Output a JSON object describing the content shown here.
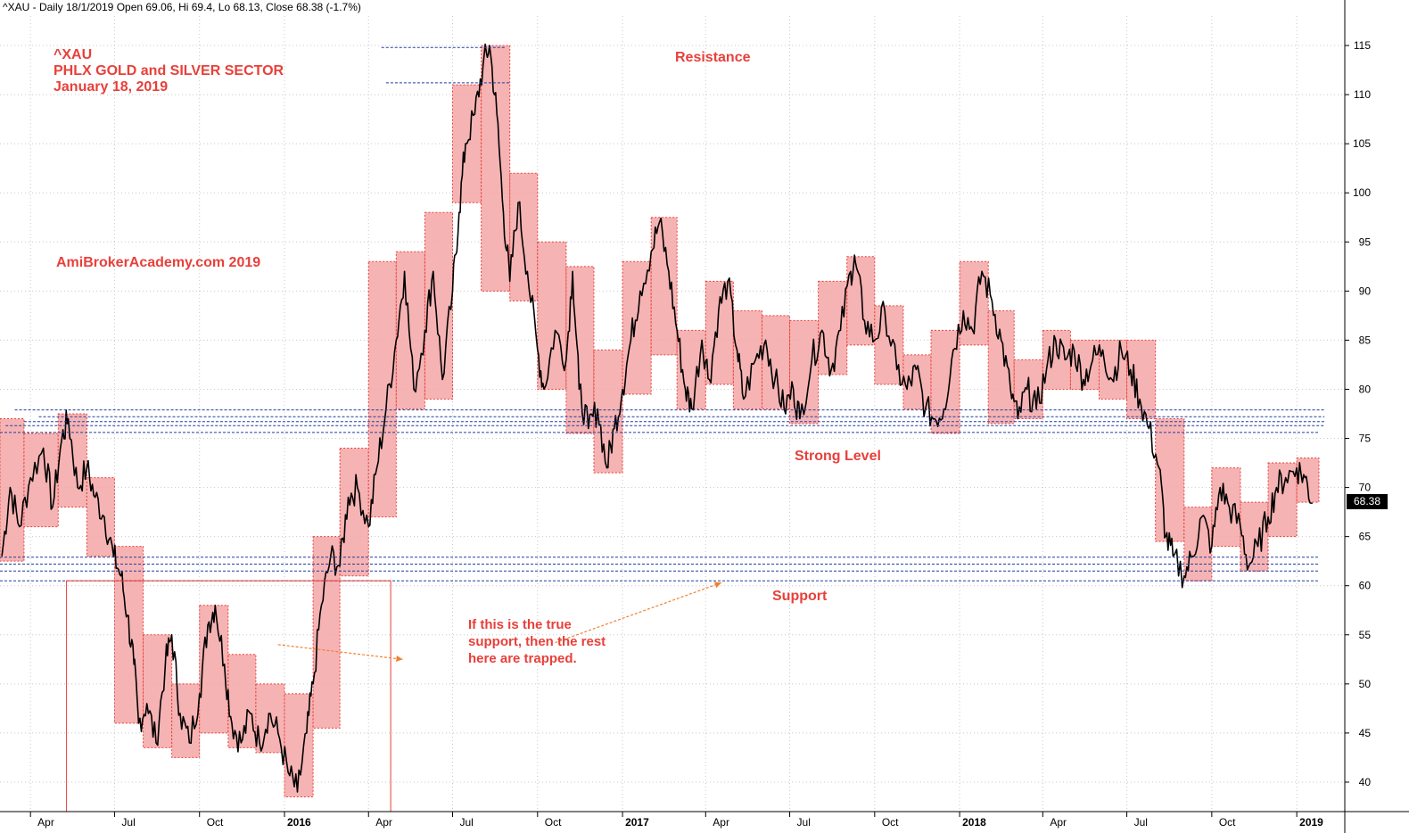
{
  "header": {
    "text": "^XAU - Daily 18/1/2019 Open 69.06, Hi 69.4, Lo 68.13, Close 68.38 (-1.7%)"
  },
  "annotations": {
    "symbol": "^XAU",
    "sector": "PHLX GOLD and SILVER SECTOR",
    "date": "January 18, 2019",
    "watermark": "AmiBrokerAcademy.com  2019",
    "resistance": "Resistance",
    "strong_level": "Strong Level",
    "support": "Support",
    "note": "If this is the true support, then the rest here are trapped."
  },
  "last_price": "68.38",
  "colors": {
    "box_fill": "#f4a6a6",
    "box_border": "#e8403a",
    "level_line": "#1f3fa0",
    "annotation": "#e8403a",
    "arrow": "#f08030",
    "grid": "#c8c8c8",
    "price_line": "#000000"
  },
  "chart_data": {
    "type": "line",
    "series": [
      {
        "points": [
          [
            "2015-03-01",
            63
          ],
          [
            "2015-03-10",
            70
          ],
          [
            "2015-03-20",
            66
          ],
          [
            "2015-04-01",
            71
          ],
          [
            "2015-04-15",
            74
          ],
          [
            "2015-04-25",
            68
          ],
          [
            "2015-05-05",
            75
          ],
          [
            "2015-05-12",
            77
          ],
          [
            "2015-05-22",
            70
          ],
          [
            "2015-06-01",
            72
          ],
          [
            "2015-06-10",
            69
          ],
          [
            "2015-06-20",
            67
          ],
          [
            "2015-06-30",
            63
          ],
          [
            "2015-07-08",
            61
          ],
          [
            "2015-07-15",
            57
          ],
          [
            "2015-07-22",
            52
          ],
          [
            "2015-07-27",
            46
          ],
          [
            "2015-08-05",
            48
          ],
          [
            "2015-08-15",
            44
          ],
          [
            "2015-08-25",
            52
          ],
          [
            "2015-09-01",
            55
          ],
          [
            "2015-09-10",
            47
          ],
          [
            "2015-09-20",
            44
          ],
          [
            "2015-10-01",
            49
          ],
          [
            "2015-10-10",
            56
          ],
          [
            "2015-10-18",
            58
          ],
          [
            "2015-10-28",
            52
          ],
          [
            "2015-11-05",
            46
          ],
          [
            "2015-11-15",
            44
          ],
          [
            "2015-11-25",
            47
          ],
          [
            "2015-12-05",
            44
          ],
          [
            "2015-12-15",
            47
          ],
          [
            "2015-12-25",
            45
          ],
          [
            "2016-01-05",
            41
          ],
          [
            "2016-01-15",
            39
          ],
          [
            "2016-01-25",
            45
          ],
          [
            "2016-02-01",
            50
          ],
          [
            "2016-02-10",
            58
          ],
          [
            "2016-02-20",
            63
          ],
          [
            "2016-03-01",
            62
          ],
          [
            "2016-03-10",
            69
          ],
          [
            "2016-03-20",
            70
          ],
          [
            "2016-04-01",
            66
          ],
          [
            "2016-04-10",
            72
          ],
          [
            "2016-04-20",
            78
          ],
          [
            "2016-05-01",
            85
          ],
          [
            "2016-05-10",
            92
          ],
          [
            "2016-05-20",
            80
          ],
          [
            "2016-06-01",
            86
          ],
          [
            "2016-06-10",
            92
          ],
          [
            "2016-06-20",
            81
          ],
          [
            "2016-07-01",
            90
          ],
          [
            "2016-07-08",
            98
          ],
          [
            "2016-07-15",
            105
          ],
          [
            "2016-07-25",
            108
          ],
          [
            "2016-08-03",
            113
          ],
          [
            "2016-08-10",
            115
          ],
          [
            "2016-08-18",
            108
          ],
          [
            "2016-08-25",
            98
          ],
          [
            "2016-09-01",
            91
          ],
          [
            "2016-09-10",
            99
          ],
          [
            "2016-09-20",
            92
          ],
          [
            "2016-10-01",
            84
          ],
          [
            "2016-10-08",
            80
          ],
          [
            "2016-10-20",
            86
          ],
          [
            "2016-11-01",
            83
          ],
          [
            "2016-11-08",
            92
          ],
          [
            "2016-11-15",
            80
          ],
          [
            "2016-11-25",
            76
          ],
          [
            "2016-12-05",
            78
          ],
          [
            "2016-12-15",
            72
          ],
          [
            "2016-12-23",
            76
          ],
          [
            "2017-01-01",
            80
          ],
          [
            "2017-01-10",
            85
          ],
          [
            "2017-01-20",
            90
          ],
          [
            "2017-02-01",
            94
          ],
          [
            "2017-02-10",
            97
          ],
          [
            "2017-02-20",
            92
          ],
          [
            "2017-03-01",
            86
          ],
          [
            "2017-03-10",
            80
          ],
          [
            "2017-03-17",
            78
          ],
          [
            "2017-03-28",
            85
          ],
          [
            "2017-04-05",
            81
          ],
          [
            "2017-04-15",
            88
          ],
          [
            "2017-04-25",
            91
          ],
          [
            "2017-05-05",
            84
          ],
          [
            "2017-05-12",
            79
          ],
          [
            "2017-05-25",
            83
          ],
          [
            "2017-06-05",
            85
          ],
          [
            "2017-06-15",
            81
          ],
          [
            "2017-06-25",
            78
          ],
          [
            "2017-07-05",
            80
          ],
          [
            "2017-07-12",
            77
          ],
          [
            "2017-07-25",
            83
          ],
          [
            "2017-08-05",
            86
          ],
          [
            "2017-08-15",
            82
          ],
          [
            "2017-08-25",
            86
          ],
          [
            "2017-09-05",
            92
          ],
          [
            "2017-09-10",
            93
          ],
          [
            "2017-09-20",
            87
          ],
          [
            "2017-10-01",
            85
          ],
          [
            "2017-10-12",
            88
          ],
          [
            "2017-10-25",
            82
          ],
          [
            "2017-11-05",
            80
          ],
          [
            "2017-11-15",
            82
          ],
          [
            "2017-11-25",
            78
          ],
          [
            "2017-12-05",
            77
          ],
          [
            "2017-12-15",
            78
          ],
          [
            "2017-12-25",
            84
          ],
          [
            "2018-01-05",
            88
          ],
          [
            "2018-01-15",
            86
          ],
          [
            "2018-01-25",
            92
          ],
          [
            "2018-02-05",
            89
          ],
          [
            "2018-02-15",
            85
          ],
          [
            "2018-02-25",
            80
          ],
          [
            "2018-03-05",
            77
          ],
          [
            "2018-03-15",
            80
          ],
          [
            "2018-03-25",
            78
          ],
          [
            "2018-04-05",
            82
          ],
          [
            "2018-04-15",
            85
          ],
          [
            "2018-04-25",
            83
          ],
          [
            "2018-05-05",
            84
          ],
          [
            "2018-05-15",
            81
          ],
          [
            "2018-05-25",
            83
          ],
          [
            "2018-06-05",
            84
          ],
          [
            "2018-06-15",
            81
          ],
          [
            "2018-06-25",
            84
          ],
          [
            "2018-07-05",
            82
          ],
          [
            "2018-07-15",
            79
          ],
          [
            "2018-07-25",
            76
          ],
          [
            "2018-08-05",
            72
          ],
          [
            "2018-08-12",
            65
          ],
          [
            "2018-08-20",
            63
          ],
          [
            "2018-09-01",
            61
          ],
          [
            "2018-09-10",
            63
          ],
          [
            "2018-09-20",
            67
          ],
          [
            "2018-10-01",
            64
          ],
          [
            "2018-10-10",
            70
          ],
          [
            "2018-10-20",
            68
          ],
          [
            "2018-11-01",
            66
          ],
          [
            "2018-11-10",
            62
          ],
          [
            "2018-11-20",
            64
          ],
          [
            "2018-12-01",
            67
          ],
          [
            "2018-12-10",
            70
          ],
          [
            "2018-12-20",
            71
          ],
          [
            "2019-01-01",
            72
          ],
          [
            "2019-01-10",
            71
          ],
          [
            "2019-01-18",
            68.38
          ]
        ]
      }
    ],
    "boxes": [
      [
        "2015-02-27",
        "2015-03-25",
        62.5,
        77
      ],
      [
        "2015-03-25",
        "2015-05-01",
        66,
        75.5
      ],
      [
        "2015-05-01",
        "2015-06-01",
        68,
        77.5
      ],
      [
        "2015-06-01",
        "2015-07-01",
        63,
        71
      ],
      [
        "2015-07-01",
        "2015-08-01",
        46,
        64
      ],
      [
        "2015-08-01",
        "2015-09-01",
        43.5,
        55
      ],
      [
        "2015-09-01",
        "2015-10-01",
        42.5,
        50
      ],
      [
        "2015-10-01",
        "2015-11-01",
        45,
        58
      ],
      [
        "2015-11-01",
        "2015-12-01",
        43.5,
        53
      ],
      [
        "2015-12-01",
        "2016-01-01",
        43,
        50
      ],
      [
        "2016-01-01",
        "2016-02-01",
        38.5,
        49
      ],
      [
        "2016-02-01",
        "2016-03-01",
        45.5,
        65
      ],
      [
        "2016-03-01",
        "2016-04-01",
        61,
        74
      ],
      [
        "2016-04-01",
        "2016-05-01",
        67,
        93
      ],
      [
        "2016-05-01",
        "2016-06-01",
        78,
        94
      ],
      [
        "2016-06-01",
        "2016-07-01",
        79,
        98
      ],
      [
        "2016-07-01",
        "2016-08-01",
        99,
        111
      ],
      [
        "2016-08-01",
        "2016-09-01",
        90,
        115
      ],
      [
        "2016-09-01",
        "2016-10-01",
        89,
        102
      ],
      [
        "2016-10-01",
        "2016-11-01",
        80,
        95
      ],
      [
        "2016-11-01",
        "2016-12-01",
        75.5,
        92.5
      ],
      [
        "2016-12-01",
        "2017-01-01",
        71.5,
        84
      ],
      [
        "2017-01-01",
        "2017-02-01",
        79.5,
        93
      ],
      [
        "2017-02-01",
        "2017-03-01",
        83.5,
        97.5
      ],
      [
        "2017-03-01",
        "2017-04-01",
        78,
        86
      ],
      [
        "2017-04-01",
        "2017-05-01",
        80.5,
        91
      ],
      [
        "2017-05-01",
        "2017-06-01",
        78,
        88
      ],
      [
        "2017-06-01",
        "2017-07-01",
        78,
        87.5
      ],
      [
        "2017-07-01",
        "2017-08-01",
        76.5,
        87
      ],
      [
        "2017-08-01",
        "2017-09-01",
        81.5,
        91
      ],
      [
        "2017-09-01",
        "2017-10-01",
        84.5,
        93.5
      ],
      [
        "2017-10-01",
        "2017-11-01",
        80.5,
        88.5
      ],
      [
        "2017-11-01",
        "2017-12-01",
        78,
        83.5
      ],
      [
        "2017-12-01",
        "2018-01-01",
        75.5,
        86
      ],
      [
        "2018-01-01",
        "2018-02-01",
        84.5,
        93
      ],
      [
        "2018-02-01",
        "2018-03-01",
        76.5,
        88
      ],
      [
        "2018-03-01",
        "2018-04-01",
        77,
        83
      ],
      [
        "2018-04-01",
        "2018-05-01",
        80,
        86
      ],
      [
        "2018-05-01",
        "2018-06-01",
        80,
        85
      ],
      [
        "2018-06-01",
        "2018-07-01",
        79,
        85
      ],
      [
        "2018-07-01",
        "2018-08-01",
        77,
        85
      ],
      [
        "2018-08-01",
        "2018-09-01",
        64.5,
        77
      ],
      [
        "2018-09-01",
        "2018-10-01",
        60.5,
        68
      ],
      [
        "2018-10-01",
        "2018-11-01",
        64,
        72
      ],
      [
        "2018-11-01",
        "2018-12-01",
        61.5,
        68.5
      ],
      [
        "2018-12-01",
        "2019-01-01",
        65,
        72.5
      ],
      [
        "2019-01-01",
        "2019-01-25",
        68.5,
        73
      ]
    ],
    "level_lines": [
      [
        "2016-04-15",
        "2016-08-28",
        114.8
      ],
      [
        "2016-04-20",
        "2016-09-01",
        111.2
      ],
      [
        "2015-03-15",
        "2019-01-31",
        77.9
      ],
      [
        "2015-04-10",
        "2019-01-31",
        77.2
      ],
      [
        "2015-03-25",
        "2019-01-31",
        76.7
      ],
      [
        "2015-03-05",
        "2019-01-31",
        76.3
      ],
      [
        "2015-02-27",
        "2019-01-25",
        75.6
      ],
      [
        "2015-02-27",
        "2019-01-25",
        62.9
      ],
      [
        "2015-02-27",
        "2019-01-25",
        62.2
      ],
      [
        "2015-02-27",
        "2019-01-25",
        61.5
      ],
      [
        "2015-02-27",
        "2019-01-25",
        60.5
      ]
    ],
    "highlight_rect": [
      "2015-05-10",
      "2016-04-25",
      37,
      60.5
    ],
    "arrows": [
      [
        [
          "2015-12-25",
          54
        ],
        [
          "2016-05-08",
          52.5
        ]
      ],
      [
        [
          "2016-10-20",
          54.2
        ],
        [
          "2017-04-18",
          60.3
        ]
      ]
    ],
    "y_ticks": [
      40,
      45,
      50,
      55,
      60,
      65,
      70,
      75,
      80,
      85,
      90,
      95,
      100,
      105,
      110,
      115
    ],
    "ylim": [
      37,
      118
    ],
    "x_ticks": [
      {
        "date": "2015-04-01",
        "label": "Apr",
        "major": false
      },
      {
        "date": "2015-07-01",
        "label": "Jul",
        "major": false
      },
      {
        "date": "2015-10-01",
        "label": "Oct",
        "major": false
      },
      {
        "date": "2016-01-01",
        "label": "2016",
        "major": true
      },
      {
        "date": "2016-04-01",
        "label": "Apr",
        "major": false
      },
      {
        "date": "2016-07-01",
        "label": "Jul",
        "major": false
      },
      {
        "date": "2016-10-01",
        "label": "Oct",
        "major": false
      },
      {
        "date": "2017-01-01",
        "label": "2017",
        "major": true
      },
      {
        "date": "2017-04-01",
        "label": "Apr",
        "major": false
      },
      {
        "date": "2017-07-01",
        "label": "Jul",
        "major": false
      },
      {
        "date": "2017-10-01",
        "label": "Oct",
        "major": false
      },
      {
        "date": "2018-01-01",
        "label": "2018",
        "major": true
      },
      {
        "date": "2018-04-01",
        "label": "Apr",
        "major": false
      },
      {
        "date": "2018-07-01",
        "label": "Jul",
        "major": false
      },
      {
        "date": "2018-10-01",
        "label": "Oct",
        "major": false
      },
      {
        "date": "2019-01-01",
        "label": "2019",
        "major": true
      }
    ],
    "xlim": [
      "2015-02-27",
      "2019-02-22"
    ],
    "grid": true
  }
}
